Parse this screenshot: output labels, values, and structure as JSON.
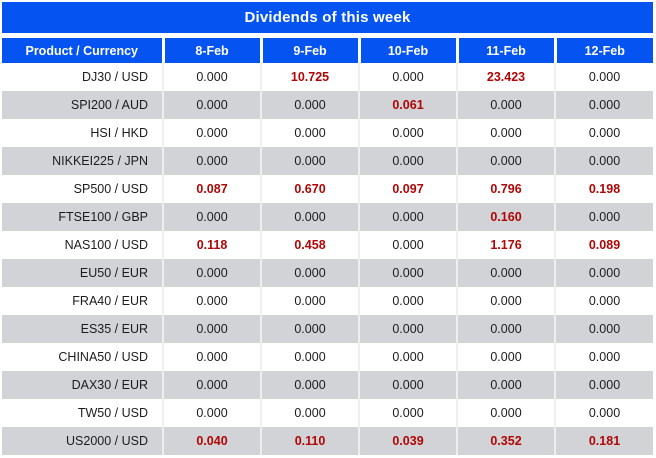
{
  "title": "Dividends of this week",
  "table": {
    "columns": [
      "Product / Currency",
      "8-Feb",
      "9-Feb",
      "10-Feb",
      "11-Feb",
      "12-Feb"
    ],
    "rows": [
      {
        "product": "DJ30 / USD",
        "values": [
          "0.000",
          "10.725",
          "0.000",
          "23.423",
          "0.000"
        ],
        "red": [
          false,
          true,
          false,
          true,
          false
        ]
      },
      {
        "product": "SPI200 / AUD",
        "values": [
          "0.000",
          "0.000",
          "0.061",
          "0.000",
          "0.000"
        ],
        "red": [
          false,
          false,
          true,
          false,
          false
        ]
      },
      {
        "product": "HSI / HKD",
        "values": [
          "0.000",
          "0.000",
          "0.000",
          "0.000",
          "0.000"
        ],
        "red": [
          false,
          false,
          false,
          false,
          false
        ]
      },
      {
        "product": "NIKKEI225 / JPN",
        "values": [
          "0.000",
          "0.000",
          "0.000",
          "0.000",
          "0.000"
        ],
        "red": [
          false,
          false,
          false,
          false,
          false
        ]
      },
      {
        "product": "SP500 / USD",
        "values": [
          "0.087",
          "0.670",
          "0.097",
          "0.796",
          "0.198"
        ],
        "red": [
          true,
          true,
          true,
          true,
          true
        ]
      },
      {
        "product": "FTSE100 / GBP",
        "values": [
          "0.000",
          "0.000",
          "0.000",
          "0.160",
          "0.000"
        ],
        "red": [
          false,
          false,
          false,
          true,
          false
        ]
      },
      {
        "product": "NAS100 / USD",
        "values": [
          "0.118",
          "0.458",
          "0.000",
          "1.176",
          "0.089"
        ],
        "red": [
          true,
          true,
          false,
          true,
          true
        ]
      },
      {
        "product": "EU50 / EUR",
        "values": [
          "0.000",
          "0.000",
          "0.000",
          "0.000",
          "0.000"
        ],
        "red": [
          false,
          false,
          false,
          false,
          false
        ]
      },
      {
        "product": "FRA40 / EUR",
        "values": [
          "0.000",
          "0.000",
          "0.000",
          "0.000",
          "0.000"
        ],
        "red": [
          false,
          false,
          false,
          false,
          false
        ]
      },
      {
        "product": "ES35 / EUR",
        "values": [
          "0.000",
          "0.000",
          "0.000",
          "0.000",
          "0.000"
        ],
        "red": [
          false,
          false,
          false,
          false,
          false
        ]
      },
      {
        "product": "CHINA50 / USD",
        "values": [
          "0.000",
          "0.000",
          "0.000",
          "0.000",
          "0.000"
        ],
        "red": [
          false,
          false,
          false,
          false,
          false
        ]
      },
      {
        "product": "DAX30 / EUR",
        "values": [
          "0.000",
          "0.000",
          "0.000",
          "0.000",
          "0.000"
        ],
        "red": [
          false,
          false,
          false,
          false,
          false
        ]
      },
      {
        "product": "TW50 / USD",
        "values": [
          "0.000",
          "0.000",
          "0.000",
          "0.000",
          "0.000"
        ],
        "red": [
          false,
          false,
          false,
          false,
          false
        ]
      },
      {
        "product": "US2000 / USD",
        "values": [
          "0.040",
          "0.110",
          "0.039",
          "0.352",
          "0.181"
        ],
        "red": [
          true,
          true,
          true,
          true,
          true
        ]
      }
    ]
  },
  "colors": {
    "header_blue": "#0553f0",
    "row_alt_gray": "#d1d3d6",
    "dividend_red": "#b00606",
    "text_dark": "#1c1c1c"
  }
}
